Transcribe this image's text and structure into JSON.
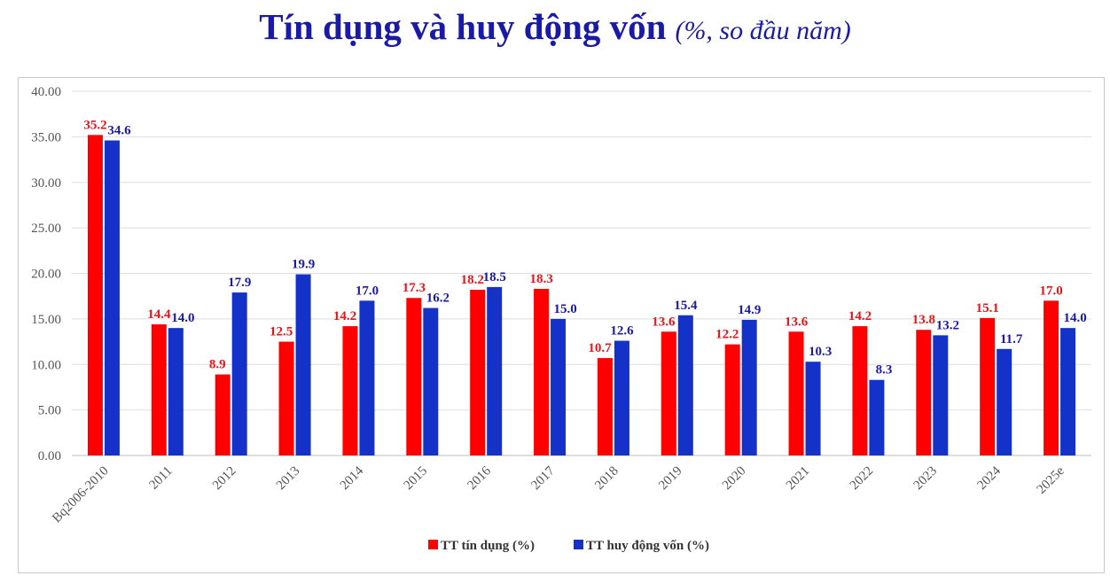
{
  "title": "Tín dụng và huy động vốn",
  "subtitle": "(%, so đầu năm)",
  "chart_data": {
    "type": "bar",
    "categories": [
      "Bq2006-2010",
      "2011",
      "2012",
      "2013",
      "2014",
      "2015",
      "2016",
      "2017",
      "2018",
      "2019",
      "2020",
      "2021",
      "2022",
      "2023",
      "2024",
      "2025e"
    ],
    "series": [
      {
        "name": "TT tín dụng (%)",
        "color": "#ff0000",
        "label_color": "#e8141a",
        "values": [
          35.2,
          14.4,
          8.9,
          12.5,
          14.2,
          17.3,
          18.2,
          18.3,
          10.7,
          13.6,
          12.2,
          13.6,
          14.2,
          13.8,
          15.1,
          17.0
        ],
        "labels": [
          "35.2",
          "14.4",
          "8.9",
          "12.5",
          "14.2",
          "17.3",
          "18.2",
          "18.3",
          "10.7",
          "13.6",
          "12.2",
          "13.6",
          "14.2",
          "13.8",
          "15.1",
          "17.0"
        ]
      },
      {
        "name": "TT huy động vốn (%)",
        "color": "#1432c8",
        "label_color": "#1a1aa6",
        "values": [
          34.6,
          14.0,
          17.9,
          19.9,
          17.0,
          16.2,
          18.5,
          15.0,
          12.6,
          15.4,
          14.9,
          10.3,
          8.3,
          13.2,
          11.7,
          14.0
        ],
        "labels": [
          "34.6",
          "14.0",
          "17.9",
          "19.9",
          "17.0",
          "16.2",
          "18.5",
          "15.0",
          "12.6",
          "15.4",
          "14.9",
          "10.3",
          "8.3",
          "13.2",
          "11.7",
          "14.0"
        ]
      }
    ],
    "y_ticks": [
      "0.00",
      "5.00",
      "10.00",
      "15.00",
      "20.00",
      "25.00",
      "30.00",
      "35.00",
      "40.00"
    ],
    "ylim": [
      0,
      40
    ],
    "grid": true,
    "legend_position": "bottom-center"
  }
}
